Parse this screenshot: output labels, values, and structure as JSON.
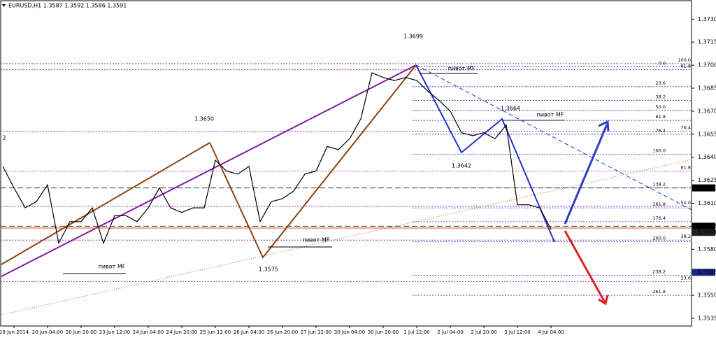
{
  "chart_data": {
    "type": "line",
    "title": "EURUSD,H1 1.3587 1.3592 1.3586 1.3591",
    "x_labels": [
      "19 Jun 2014",
      "20 Jun 04:00",
      "20 Jun 20:00",
      "23 Jun 12:00",
      "24 Jun 04:00",
      "24 Jun 20:00",
      "25 Jun 12:00",
      "26 Jun 04:00",
      "26 Jun 20:00",
      "27 Jun 12:00",
      "30 Jun 04:00",
      "30 Jun 20:00",
      "1 Jul 12:00",
      "2 Jul 04:00",
      "2 Jul 20:00",
      "3 Jul 12:00",
      "4 Jul 04:00"
    ],
    "series": [
      {
        "name": "EURUSD,H1",
        "color": "#000000",
        "values": [
          1.3634,
          1.362,
          1.3607,
          1.3611,
          1.3622,
          1.3584,
          1.3598,
          1.3598,
          1.3607,
          1.3584,
          1.3602,
          1.3602,
          1.3598,
          1.3607,
          1.362,
          1.3607,
          1.3604,
          1.3607,
          1.3607,
          1.3638,
          1.3631,
          1.3629,
          1.3634,
          1.3598,
          1.3611,
          1.3613,
          1.3618,
          1.3629,
          1.3631,
          1.3647,
          1.3645,
          1.3652,
          1.3665,
          1.3695,
          1.3692,
          1.369,
          1.3692,
          1.369,
          1.3683,
          1.3677,
          1.367,
          1.3656,
          1.3654,
          1.3656,
          1.3652,
          1.3661,
          1.3609,
          1.3609,
          1.3607,
          1.3593
        ]
      }
    ],
    "ylim": [
      1.353,
      1.3742
    ],
    "yticks": [
      {
        "value": 1.373,
        "label": "1.3730"
      },
      1.3715,
      {
        "value": 1.37,
        "label": "1.3700"
      },
      1.3685,
      {
        "value": 1.367,
        "label": "1.3670"
      },
      1.3655,
      {
        "value": 1.364,
        "label": "1.3640"
      },
      1.3625,
      {
        "value": 1.361,
        "label": "1.3610"
      },
      1.3595,
      {
        "value": 1.358,
        "label": "1.3580"
      },
      1.3565,
      {
        "value": 1.355,
        "label": "1.3550"
      },
      1.3535
    ],
    "price_labels": [
      {
        "value": 1.362,
        "label": "1.3620",
        "color": "#000000"
      },
      {
        "value": 1.3595,
        "label": "1.3595",
        "color": "#000000"
      },
      {
        "value": 1.3591,
        "label": "1.3591",
        "color": "#222222"
      },
      {
        "value": 1.3565,
        "label": "1.3565",
        "color": "#1a237e"
      }
    ],
    "fib_left": {
      "color": "#2233cc",
      "levels": [
        {
          "label": "0.0",
          "value": 1.3699
        },
        {
          "label": "23.6",
          "value": 1.3686
        },
        {
          "label": "38.2",
          "value": 1.3677
        },
        {
          "label": "50.0",
          "value": 1.36705
        },
        {
          "label": "61.8",
          "value": 1.3664
        },
        {
          "label": "76.4",
          "value": 1.3655
        },
        {
          "label": "100.0",
          "value": 1.3642
        },
        {
          "label": "138.2",
          "value": 1.362
        },
        {
          "label": "161.8",
          "value": 1.3607
        },
        {
          "label": "176.4",
          "value": 1.3598
        },
        {
          "label": "200.0",
          "value": 1.3585
        },
        {
          "label": "238.2",
          "value": 1.3563
        },
        {
          "label": "261.8",
          "value": 1.355
        }
      ]
    },
    "fib_right": {
      "color": "#8b1a8b",
      "levels": [
        {
          "label": "100.0",
          "value": 1.3701
        },
        {
          "label": "61.8",
          "value": 1.3697
        },
        {
          "label": "76.4",
          "value": 1.3657
        },
        {
          "label": "61.8",
          "value": 1.3631
        },
        {
          "label": "50.0",
          "value": 1.3608
        },
        {
          "label": "38.2",
          "value": 1.3586
        },
        {
          "label": "23.6",
          "value": 1.3559
        }
      ]
    },
    "annotations": [
      {
        "text": "1.3699"
      },
      {
        "text": "1.3650"
      },
      {
        "text": "1.3664"
      },
      {
        "text": "1.3642"
      },
      {
        "text": "1.3575"
      },
      {
        "text": "2"
      },
      {
        "text": "пивот MF"
      },
      {
        "text": "пивот MF"
      },
      {
        "text": "пивот MF"
      },
      {
        "text": "пивот MF"
      }
    ]
  }
}
